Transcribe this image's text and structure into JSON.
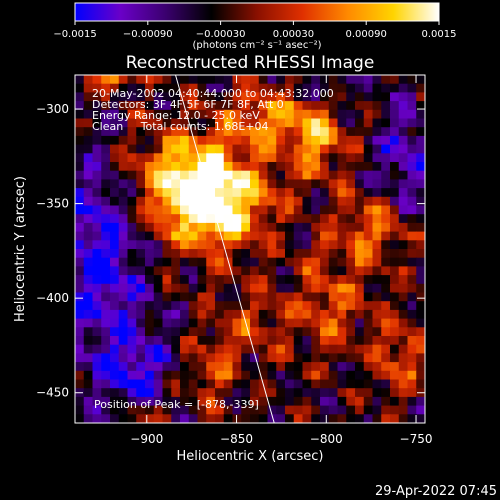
{
  "chart_data": {
    "type": "heatmap",
    "title": "Reconstructed RHESSI Image",
    "xlabel": "Heliocentric X (arcsec)",
    "ylabel": "Heliocentric Y (arcsec)",
    "xlim": [
      -940,
      -745
    ],
    "ylim": [
      -466,
      -282
    ],
    "x_ticks": [
      {
        "value": -900,
        "label": "−900"
      },
      {
        "value": -850,
        "label": "−850"
      },
      {
        "value": -800,
        "label": "−800"
      },
      {
        "value": -750,
        "label": "−750"
      }
    ],
    "y_ticks": [
      {
        "value": -300,
        "label": "−300"
      },
      {
        "value": -350,
        "label": "−350"
      },
      {
        "value": -400,
        "label": "−400"
      },
      {
        "value": -450,
        "label": "−450"
      }
    ],
    "colorbar": {
      "range": [
        -0.0015,
        0.0015
      ],
      "ticks": [
        {
          "value": -0.0015,
          "label": "−0.0015"
        },
        {
          "value": -0.0009,
          "label": "−0.00090"
        },
        {
          "value": -0.0003,
          "label": "−0.00030"
        },
        {
          "value": 0.0003,
          "label": "0.00030"
        },
        {
          "value": 0.0009,
          "label": "0.00090"
        },
        {
          "value": 0.0015,
          "label": "0.0015"
        }
      ],
      "unit_label": "(photons cm⁻² s⁻¹ asec⁻²)",
      "colormap": [
        "#0000ff",
        "#6a00c8",
        "#3a006e",
        "#000000",
        "#8a1000",
        "#e03000",
        "#ff8a00",
        "#ffd400",
        "#ffffff"
      ]
    },
    "info_lines": [
      "20-May-2002 04:40:44.000 to 04:43:32.000",
      "Detectors: 3F 4F 5F 6F 7F 8F, Att 0",
      "Energy Range: 12.0 - 25.0 keV",
      "Clean     Total counts: 1.68E+04"
    ],
    "peak_label": "Position of Peak = [-878,-339]",
    "peak_position": [
      -878,
      -339
    ],
    "limb": [
      [
        -884,
        -282
      ],
      [
        -829,
        -466
      ]
    ],
    "grid": false,
    "field": {
      "bright_blobs": [
        {
          "x": -878,
          "y": -339,
          "sx": 22,
          "sy": 20,
          "amp": 0.0015
        },
        {
          "x": -858,
          "y": -350,
          "sx": 20,
          "sy": 18,
          "amp": 0.00125
        },
        {
          "x": -807,
          "y": -315,
          "sx": 12,
          "sy": 14,
          "amp": 0.0013
        },
        {
          "x": -835,
          "y": -303,
          "sx": 12,
          "sy": 10,
          "amp": 0.001
        },
        {
          "x": -918,
          "y": -282,
          "sx": 9,
          "sy": 5,
          "amp": 0.0014
        },
        {
          "x": -776,
          "y": -365,
          "sx": 14,
          "sy": 14,
          "amp": 0.0009
        },
        {
          "x": -800,
          "y": -405,
          "sx": 14,
          "sy": 18,
          "amp": 0.00075
        },
        {
          "x": -845,
          "y": -415,
          "sx": 14,
          "sy": 14,
          "amp": 0.00055
        },
        {
          "x": -865,
          "y": -440,
          "sx": 12,
          "sy": 12,
          "amp": 0.0006
        },
        {
          "x": -760,
          "y": -430,
          "sx": 10,
          "sy": 16,
          "amp": 0.0007
        },
        {
          "x": -900,
          "y": -460,
          "sx": 10,
          "sy": 8,
          "amp": 0.0005
        }
      ],
      "negative_blobs": [
        {
          "x": -925,
          "y": -380,
          "sx": 18,
          "sy": 40,
          "amp": 0.0011
        },
        {
          "x": -905,
          "y": -440,
          "sx": 14,
          "sy": 14,
          "amp": 0.0009
        },
        {
          "x": -755,
          "y": -325,
          "sx": 12,
          "sy": 20,
          "amp": 0.0008
        },
        {
          "x": -800,
          "y": -288,
          "sx": 10,
          "sy": 8,
          "amp": 0.0006
        }
      ]
    }
  },
  "footer": {
    "timestamp": "29-Apr-2022 07:45"
  }
}
